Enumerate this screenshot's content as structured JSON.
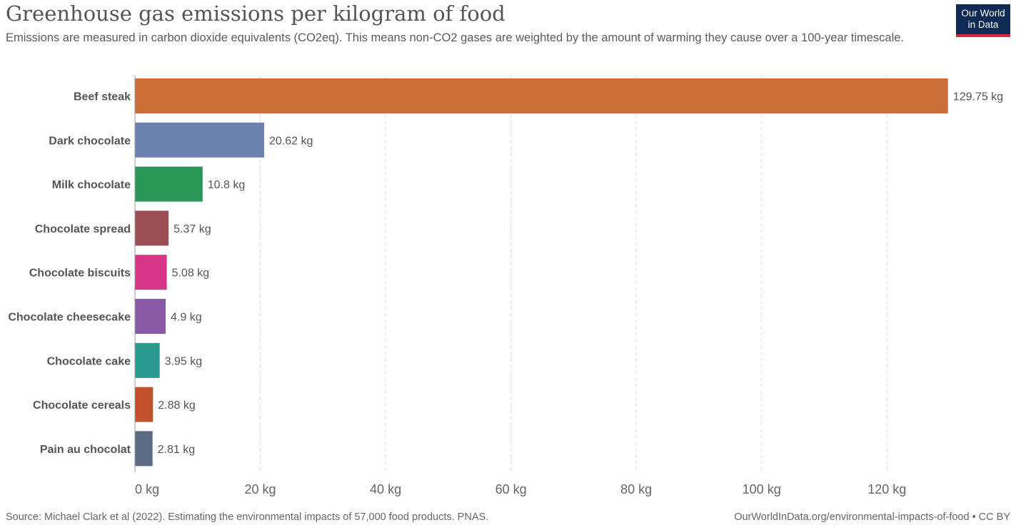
{
  "header": {
    "title": "Greenhouse gas emissions per kilogram of food",
    "subtitle": "Emissions are measured in carbon dioxide equivalents (CO2eq). This means non-CO2 gases are weighted by the amount of warming they cause over a 100-year timescale."
  },
  "logo": {
    "line1": "Our World",
    "line2": "in Data",
    "bg_color": "#0f2a54",
    "accent_color": "#d7263d"
  },
  "footer": {
    "source": "Source: Michael Clark et al (2022). Estimating the environmental impacts of 57,000 food products. PNAS.",
    "link": "OurWorldInData.org/environmental-impacts-of-food • CC BY"
  },
  "chart_data": {
    "type": "bar",
    "orientation": "horizontal",
    "categories": [
      "Beef steak",
      "Dark chocolate",
      "Milk chocolate",
      "Chocolate spread",
      "Chocolate biscuits",
      "Chocolate cheesecake",
      "Chocolate cake",
      "Chocolate cereals",
      "Pain au chocolat"
    ],
    "values": [
      129.75,
      20.62,
      10.8,
      5.37,
      5.08,
      4.9,
      3.95,
      2.88,
      2.81
    ],
    "value_labels": [
      "129.75 kg",
      "20.62 kg",
      "10.8 kg",
      "5.37 kg",
      "5.08 kg",
      "4.9 kg",
      "3.95 kg",
      "2.88 kg",
      "2.81 kg"
    ],
    "colors": [
      "#cc6e38",
      "#6a82ad",
      "#2a9658",
      "#9b4f55",
      "#d73585",
      "#8a5aa6",
      "#2a9990",
      "#c0532e",
      "#5b6a85"
    ],
    "xlim": [
      0,
      130
    ],
    "xticks": [
      0,
      20,
      40,
      60,
      80,
      100,
      120
    ],
    "xtick_labels": [
      "0 kg",
      "20 kg",
      "40 kg",
      "60 kg",
      "80 kg",
      "100 kg",
      "120 kg"
    ],
    "grid": true
  }
}
